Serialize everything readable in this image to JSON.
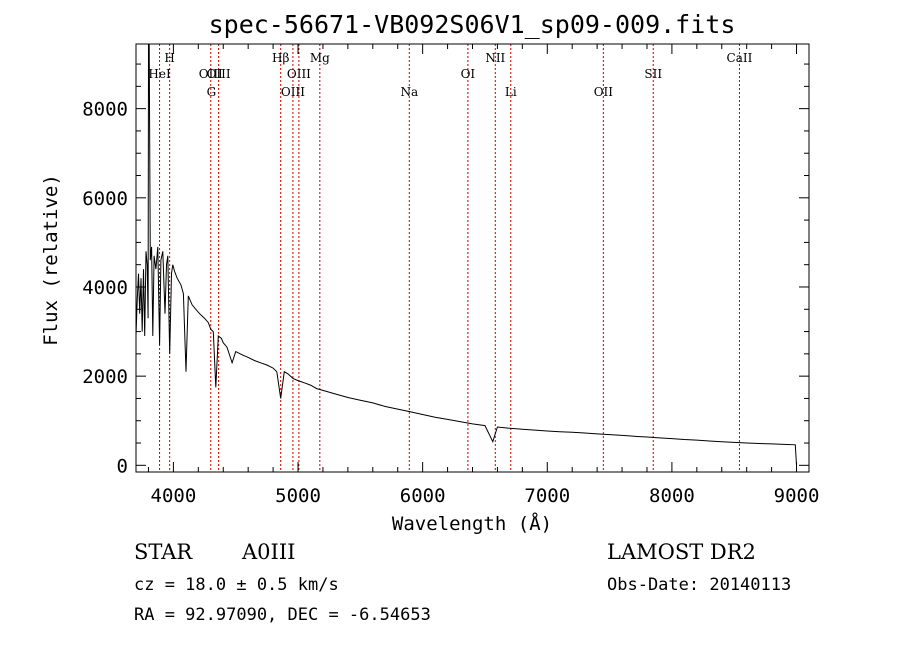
{
  "chart_data": {
    "type": "line",
    "title": "spec-56671-VB092S06V1_sp09-009.fits",
    "xlabel": "Wavelength (Å)",
    "ylabel": "Flux (relative)",
    "xlim": [
      3700,
      9100
    ],
    "ylim": [
      -150,
      9450
    ],
    "xticks": [
      4000,
      5000,
      6000,
      7000,
      8000,
      9000
    ],
    "yticks": [
      0,
      2000,
      4000,
      6000,
      8000
    ],
    "grid": false,
    "series": [
      {
        "points": [
          [
            3700,
            2900
          ],
          [
            3710,
            3700
          ],
          [
            3720,
            4300
          ],
          [
            3730,
            3400
          ],
          [
            3740,
            4200
          ],
          [
            3750,
            3000
          ],
          [
            3760,
            4400
          ],
          [
            3770,
            2900
          ],
          [
            3780,
            4800
          ],
          [
            3790,
            4500
          ],
          [
            3797,
            3300
          ],
          [
            3800,
            9450
          ],
          [
            3806,
            9450
          ],
          [
            3815,
            4600
          ],
          [
            3825,
            4900
          ],
          [
            3835,
            2900
          ],
          [
            3845,
            4700
          ],
          [
            3860,
            4400
          ],
          [
            3875,
            4900
          ],
          [
            3889,
            2700
          ],
          [
            3900,
            4600
          ],
          [
            3915,
            4800
          ],
          [
            3933,
            3400
          ],
          [
            3945,
            4500
          ],
          [
            3955,
            4700
          ],
          [
            3970,
            2500
          ],
          [
            3985,
            4300
          ],
          [
            3995,
            4500
          ],
          [
            4010,
            4350
          ],
          [
            4030,
            4200
          ],
          [
            4060,
            4050
          ],
          [
            4080,
            3850
          ],
          [
            4101,
            2100
          ],
          [
            4120,
            3800
          ],
          [
            4150,
            3600
          ],
          [
            4180,
            3500
          ],
          [
            4210,
            3400
          ],
          [
            4250,
            3300
          ],
          [
            4280,
            3200
          ],
          [
            4300,
            3050
          ],
          [
            4320,
            3000
          ],
          [
            4340,
            1750
          ],
          [
            4360,
            2900
          ],
          [
            4385,
            2850
          ],
          [
            4400,
            2750
          ],
          [
            4430,
            2650
          ],
          [
            4471,
            2300
          ],
          [
            4500,
            2550
          ],
          [
            4550,
            2480
          ],
          [
            4600,
            2420
          ],
          [
            4650,
            2350
          ],
          [
            4700,
            2300
          ],
          [
            4750,
            2250
          ],
          [
            4800,
            2180
          ],
          [
            4830,
            2100
          ],
          [
            4861,
            1500
          ],
          [
            4890,
            2100
          ],
          [
            4920,
            2050
          ],
          [
            4960,
            1950
          ],
          [
            5000,
            1900
          ],
          [
            5050,
            1850
          ],
          [
            5100,
            1800
          ],
          [
            5150,
            1720
          ],
          [
            5200,
            1680
          ],
          [
            5300,
            1600
          ],
          [
            5400,
            1520
          ],
          [
            5500,
            1460
          ],
          [
            5600,
            1400
          ],
          [
            5700,
            1320
          ],
          [
            5800,
            1260
          ],
          [
            5900,
            1200
          ],
          [
            6000,
            1140
          ],
          [
            6100,
            1080
          ],
          [
            6200,
            1030
          ],
          [
            6300,
            980
          ],
          [
            6400,
            930
          ],
          [
            6500,
            890
          ],
          [
            6563,
            530
          ],
          [
            6600,
            860
          ],
          [
            6700,
            830
          ],
          [
            6800,
            810
          ],
          [
            6900,
            790
          ],
          [
            7000,
            770
          ],
          [
            7100,
            755
          ],
          [
            7200,
            740
          ],
          [
            7300,
            725
          ],
          [
            7400,
            705
          ],
          [
            7500,
            690
          ],
          [
            7600,
            670
          ],
          [
            7700,
            650
          ],
          [
            7800,
            635
          ],
          [
            7900,
            615
          ],
          [
            8000,
            600
          ],
          [
            8100,
            580
          ],
          [
            8200,
            565
          ],
          [
            8300,
            545
          ],
          [
            8400,
            530
          ],
          [
            8500,
            515
          ],
          [
            8600,
            500
          ],
          [
            8700,
            490
          ],
          [
            8800,
            480
          ],
          [
            8900,
            470
          ],
          [
            8990,
            460
          ],
          [
            9000,
            0
          ]
        ]
      }
    ],
    "line_markers": [
      {
        "label": "HeI",
        "wavelength": 3889,
        "row": 2
      },
      {
        "label": "H",
        "wavelength": 3970,
        "row": 1
      },
      {
        "label": "OIII",
        "wavelength": 4300,
        "row": 2
      },
      {
        "label": "G",
        "wavelength": 4305,
        "row": 3
      },
      {
        "label": "OIII",
        "wavelength": 4363,
        "row": 2
      },
      {
        "label": "Hβ",
        "wavelength": 4861,
        "row": 1
      },
      {
        "label": "OIII",
        "wavelength": 4959,
        "row": 3
      },
      {
        "label": "OIII",
        "wavelength": 5007,
        "row": 2
      },
      {
        "label": "Mg",
        "wavelength": 5175,
        "row": 1
      },
      {
        "label": "Na",
        "wavelength": 5893,
        "row": 3
      },
      {
        "label": "OI",
        "wavelength": 6363,
        "row": 2
      },
      {
        "label": "NII",
        "wavelength": 6583,
        "row": 1
      },
      {
        "label": "Li",
        "wavelength": 6707,
        "row": 3
      },
      {
        "label": "OII",
        "wavelength": 7450,
        "row": 3
      },
      {
        "label": "SII",
        "wavelength": 7850,
        "row": 2
      },
      {
        "label": "CaII",
        "wavelength": 8542,
        "row": 1
      }
    ],
    "line_color": "#000000",
    "marker_color": "#cc0000"
  },
  "footer": {
    "object_type": "STAR",
    "subclass": "A0III",
    "survey": "LAMOST DR2",
    "cz": "cz = 18.0 ± 0.5 km/s",
    "obs_date": "Obs-Date: 20140113",
    "coords": "RA =  92.97090, DEC =  -6.54653"
  }
}
